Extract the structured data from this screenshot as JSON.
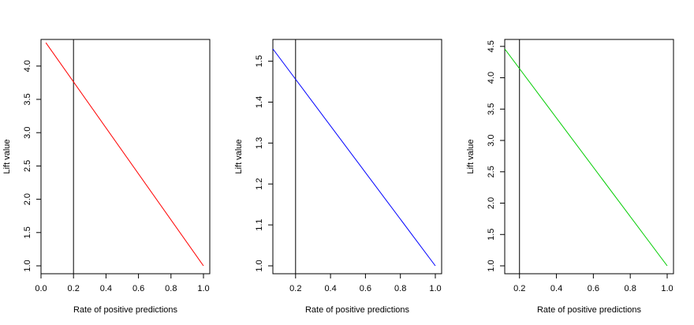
{
  "chart_data": [
    {
      "type": "line",
      "xlabel": "Rate of positive predictions",
      "ylabel": "Lift value",
      "xlim": [
        0.0,
        1.0
      ],
      "ylim": [
        1.0,
        4.4
      ],
      "xticks": [
        "0.0",
        "0.2",
        "0.4",
        "0.6",
        "0.8",
        "1.0"
      ],
      "yticks": [
        "1.0",
        "1.5",
        "2.0",
        "2.5",
        "3.0",
        "3.5",
        "4.0"
      ],
      "series": [
        {
          "color": "#ff0000",
          "x": [
            0.03,
            1.0
          ],
          "y": [
            4.35,
            1.0
          ]
        }
      ],
      "vline": 0.2,
      "grid": false
    },
    {
      "type": "line",
      "xlabel": "Rate of positive predictions",
      "ylabel": "Lift value",
      "xlim": [
        0.07,
        1.0
      ],
      "ylim": [
        1.0,
        1.53
      ],
      "xticks": [
        "0.2",
        "0.4",
        "0.6",
        "0.8",
        "1.0"
      ],
      "yticks": [
        "1.0",
        "1.1",
        "1.2",
        "1.3",
        "1.4",
        "1.5"
      ],
      "series": [
        {
          "color": "#0000ff",
          "x": [
            0.07,
            1.0
          ],
          "y": [
            1.53,
            1.0
          ]
        }
      ],
      "vline": 0.2,
      "grid": false
    },
    {
      "type": "line",
      "xlabel": "Rate of positive predictions",
      "ylabel": "Lift value",
      "xlim": [
        0.12,
        1.0
      ],
      "ylim": [
        1.0,
        4.46
      ],
      "xticks": [
        "0.2",
        "0.4",
        "0.6",
        "0.8",
        "1.0"
      ],
      "yticks": [
        "1.0",
        "1.5",
        "2.0",
        "2.5",
        "3.0",
        "3.5",
        "4.0",
        "4.5"
      ],
      "series": [
        {
          "color": "#00cc00",
          "x": [
            0.12,
            1.0
          ],
          "y": [
            4.46,
            1.0
          ]
        }
      ],
      "vline": 0.2,
      "grid": false
    }
  ]
}
